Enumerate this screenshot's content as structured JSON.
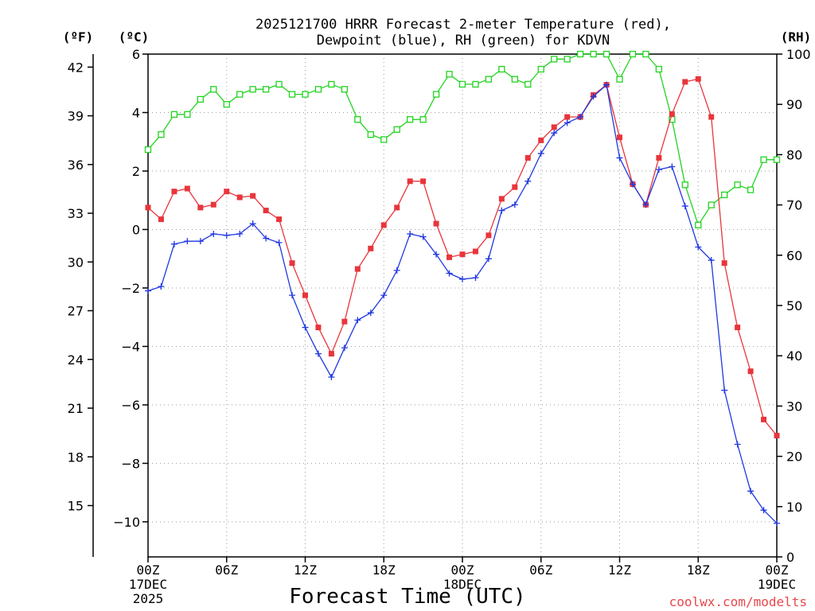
{
  "chart_data": {
    "type": "line",
    "title": [
      "2025121700 HRRR Forecast 2-meter Temperature (red),",
      "Dewpoint (blue), RH (green) for KDVN"
    ],
    "xlabel": "Forecast Time (UTC)",
    "credit": "coolwx.com/modelts",
    "unit_labels": {
      "fahrenheit": "(ºF)",
      "celsius": "(ºC)",
      "rh": "(RH)"
    },
    "x_range": [
      0,
      48
    ],
    "x_ticks": [
      {
        "x": 0,
        "lines": [
          "00Z",
          "17DEC",
          "2025"
        ]
      },
      {
        "x": 6,
        "lines": [
          "06Z"
        ]
      },
      {
        "x": 12,
        "lines": [
          "12Z"
        ]
      },
      {
        "x": 18,
        "lines": [
          "18Z"
        ]
      },
      {
        "x": 24,
        "lines": [
          "00Z",
          "18DEC"
        ]
      },
      {
        "x": 30,
        "lines": [
          "06Z"
        ]
      },
      {
        "x": 36,
        "lines": [
          "12Z"
        ]
      },
      {
        "x": 42,
        "lines": [
          "18Z"
        ]
      },
      {
        "x": 48,
        "lines": [
          "00Z",
          "19DEC"
        ]
      }
    ],
    "celsius_axis": {
      "range": [
        -11.2,
        6
      ],
      "ticks": [
        "6",
        "4",
        "2",
        "0",
        "−2",
        "−4",
        "−6",
        "−8",
        "−10"
      ]
    },
    "fahrenheit_axis": {
      "range": [
        11.84,
        42.8
      ],
      "ticks": [
        "42",
        "39",
        "36",
        "33",
        "30",
        "27",
        "24",
        "21",
        "18",
        "15"
      ]
    },
    "rh_axis": {
      "range": [
        0,
        100
      ],
      "ticks": [
        "100",
        "90",
        "80",
        "70",
        "60",
        "50",
        "40",
        "30",
        "20",
        "10",
        "0"
      ]
    },
    "series": [
      {
        "name": "Temperature",
        "units": "C",
        "color": "#e8353b",
        "marker": "filled-square",
        "values": [
          0.75,
          0.35,
          1.3,
          1.4,
          0.75,
          0.85,
          1.3,
          1.1,
          1.15,
          0.65,
          0.35,
          -1.15,
          -2.25,
          -3.35,
          -4.25,
          -3.15,
          -1.35,
          -0.65,
          0.15,
          0.75,
          1.65,
          1.65,
          0.2,
          -0.95,
          -0.85,
          -0.75,
          -0.2,
          1.05,
          1.45,
          2.45,
          3.05,
          3.5,
          3.85,
          3.85,
          4.6,
          4.95,
          3.15,
          1.55,
          0.85,
          2.45,
          3.95,
          5.05,
          5.15,
          3.85,
          -1.15,
          -3.35,
          -4.85,
          -6.5,
          -7.05
        ]
      },
      {
        "name": "Dewpoint",
        "units": "C",
        "color": "#2139e0",
        "marker": "plus",
        "values": [
          -2.1,
          -1.95,
          -0.5,
          -0.4,
          -0.4,
          -0.15,
          -0.2,
          -0.15,
          0.2,
          -0.3,
          -0.45,
          -2.25,
          -3.35,
          -4.25,
          -5.05,
          -4.05,
          -3.1,
          -2.85,
          -2.25,
          -1.4,
          -0.15,
          -0.25,
          -0.85,
          -1.5,
          -1.7,
          -1.65,
          -1.0,
          0.65,
          0.85,
          1.65,
          2.6,
          3.3,
          3.65,
          3.85,
          4.55,
          4.95,
          2.45,
          1.55,
          0.85,
          2.05,
          2.15,
          0.8,
          -0.6,
          -1.05,
          -5.5,
          -7.35,
          -8.95,
          -9.6,
          -10.05
        ]
      },
      {
        "name": "RH",
        "units": "%",
        "color": "#22d421",
        "marker": "open-square",
        "values": [
          81,
          84,
          88,
          88,
          91,
          93,
          90,
          92,
          93,
          93,
          94,
          92,
          92,
          93,
          94,
          93,
          87,
          84,
          83,
          85,
          87,
          87,
          92,
          96,
          94,
          94,
          95,
          97,
          95,
          94,
          97,
          99,
          99,
          100,
          100,
          100,
          95,
          100,
          100,
          97,
          87,
          74,
          66,
          70,
          72,
          74,
          73,
          79,
          79
        ]
      }
    ]
  }
}
